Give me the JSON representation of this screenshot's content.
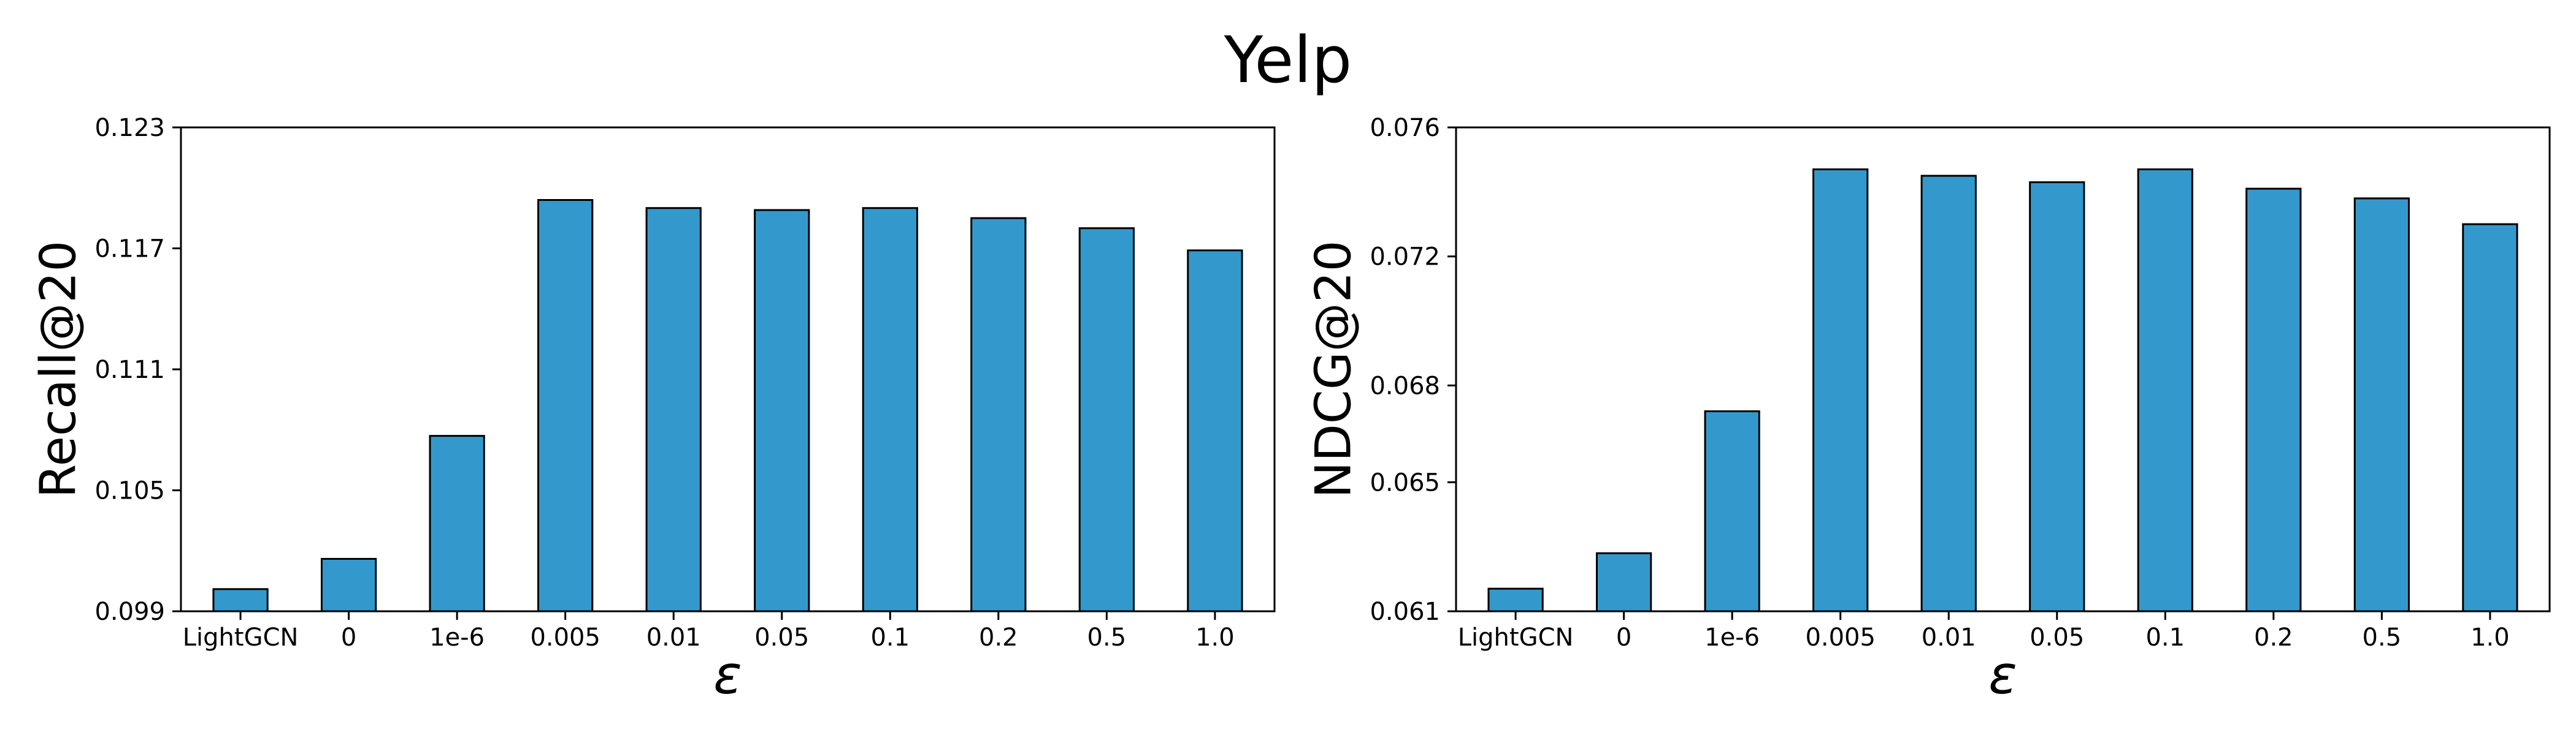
{
  "figure": {
    "title": "Yelp",
    "bar_color": "#3399cc",
    "edge_color": "#000000"
  },
  "chart_data": [
    {
      "type": "bar",
      "title": "",
      "xlabel": "ε",
      "ylabel": "Recall@20",
      "categories": [
        "LightGCN",
        "0",
        "1e-6",
        "0.005",
        "0.01",
        "0.05",
        "0.1",
        "0.2",
        "0.5",
        "1.0"
      ],
      "values": [
        0.1001,
        0.1016,
        0.1077,
        0.1194,
        0.119,
        0.1189,
        0.119,
        0.1185,
        0.118,
        0.1169
      ],
      "ylim": [
        0.099,
        0.123
      ],
      "yticks": [
        0.099,
        0.105,
        0.111,
        0.117,
        0.123
      ],
      "ytick_labels": [
        "0.099",
        "0.105",
        "0.111",
        "0.117",
        "0.123"
      ],
      "grid": false,
      "legend": "none"
    },
    {
      "type": "bar",
      "title": "",
      "xlabel": "ε",
      "ylabel": "NDCG@20",
      "categories": [
        "LightGCN",
        "0",
        "1e-6",
        "0.005",
        "0.01",
        "0.05",
        "0.1",
        "0.2",
        "0.5",
        "1.0"
      ],
      "values": [
        0.0617,
        0.0628,
        0.0672,
        0.0747,
        0.0745,
        0.0743,
        0.0747,
        0.0741,
        0.0738,
        0.073
      ],
      "ylim": [
        0.061,
        0.076
      ],
      "yticks": [
        0.061,
        0.065,
        0.068,
        0.072,
        0.076
      ],
      "ytick_labels": [
        "0.061",
        "0.065",
        "0.068",
        "0.072",
        "0.076"
      ],
      "grid": false,
      "legend": "none"
    }
  ]
}
